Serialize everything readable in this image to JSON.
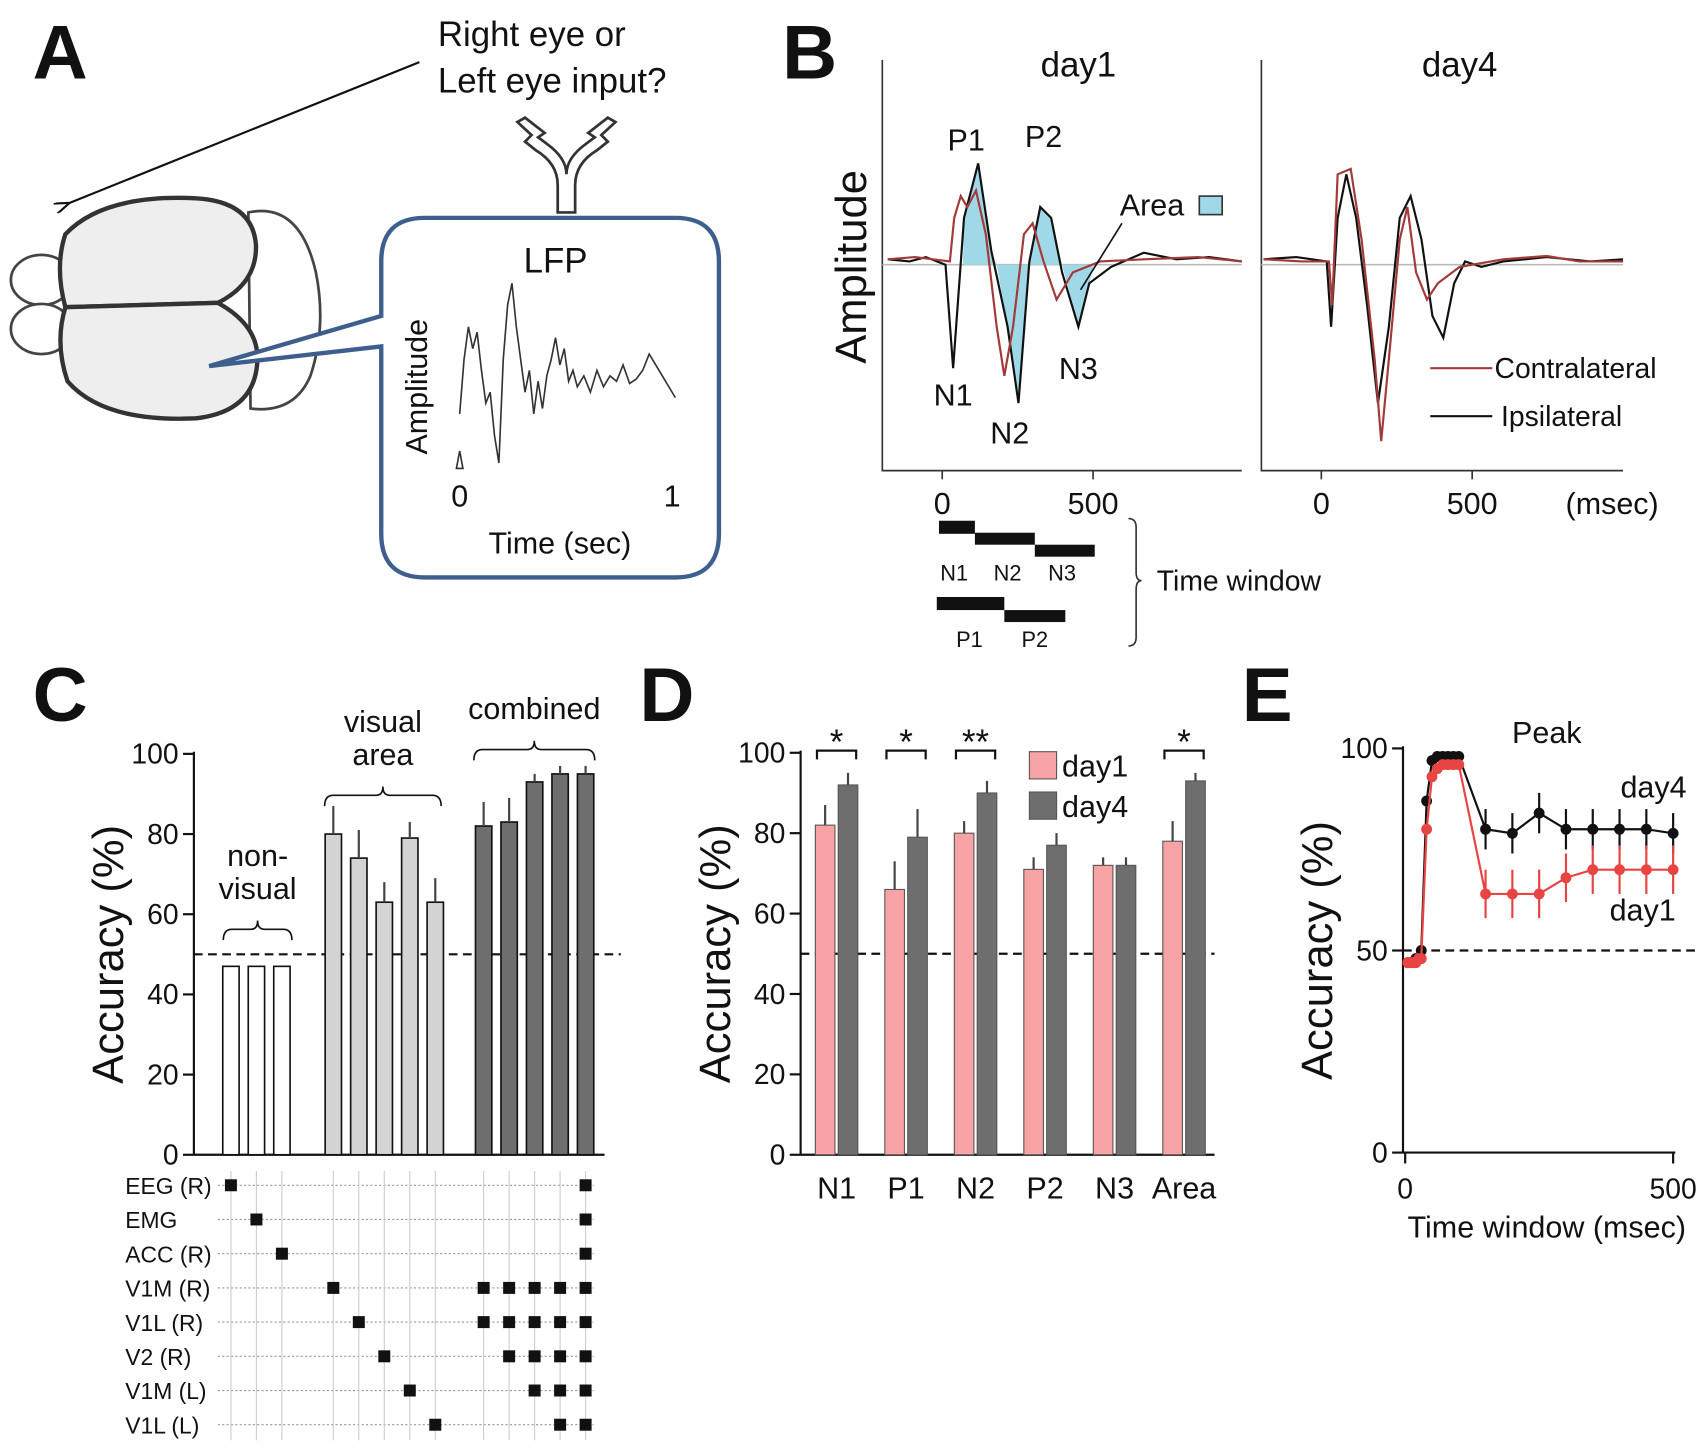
{
  "panel_a": {
    "label": "A",
    "question": [
      "Right eye or",
      "Left eye input?"
    ],
    "lfp_title": "LFP",
    "y_label": "Amplitude",
    "x_label": "Time (sec)",
    "xticks": [
      0,
      1
    ]
  },
  "panel_b": {
    "label": "B",
    "titles": [
      "day1",
      "day4"
    ],
    "y_label": "Amplitude",
    "peaks": {
      "P1": "P1",
      "P2": "P2",
      "N1": "N1",
      "N2": "N2",
      "N3": "N3"
    },
    "area": "Area",
    "legend": [
      {
        "name": "Contralateral",
        "color": "#a33a3a"
      },
      {
        "name": "Ipsilateral",
        "color": "#111111"
      }
    ],
    "xticks": [
      0,
      500
    ],
    "x_unit": "(msec)",
    "windows": [
      "N1",
      "N2",
      "N3",
      "P1",
      "P2"
    ],
    "window_label": "Time window"
  },
  "chart_data": [
    {
      "type": "bar",
      "label": "C",
      "y_label": "Accuracy (%)",
      "ylim": [
        0,
        100
      ],
      "yticks": [
        0,
        20,
        40,
        60,
        80,
        100
      ],
      "chance": 50,
      "groups": [
        {
          "label": [
            "non-",
            "visual"
          ],
          "color": "#ffffff",
          "values": [
            47,
            47,
            47
          ],
          "errors": [
            0,
            0,
            0
          ],
          "inputs": [
            [
              0
            ],
            [
              1
            ],
            [
              2
            ]
          ]
        },
        {
          "label": [
            "visual",
            "area"
          ],
          "color": "#d3d3d3",
          "values": [
            80,
            74,
            63,
            79,
            63
          ],
          "errors": [
            7,
            7,
            5,
            4,
            6
          ],
          "inputs": [
            [
              3
            ],
            [
              4
            ],
            [
              5
            ],
            [
              6
            ],
            [
              7
            ]
          ]
        },
        {
          "label": [
            "combined"
          ],
          "color": "#6e6e6e",
          "values": [
            82,
            83,
            93,
            95,
            95
          ],
          "errors": [
            6,
            6,
            2,
            2,
            2
          ],
          "inputs": [
            [
              3,
              4
            ],
            [
              3,
              4,
              5
            ],
            [
              3,
              4,
              5,
              6
            ],
            [
              3,
              4,
              5,
              6,
              7
            ],
            [
              0,
              1,
              2,
              3,
              4,
              5,
              6,
              7
            ]
          ]
        }
      ],
      "rows": [
        "EEG (R)",
        "EMG",
        "ACC (R)",
        "V1M (R)",
        "V1L (R)",
        "V2 (R)",
        "V1M (L)",
        "V1L (L)"
      ]
    },
    {
      "type": "grouped_bar",
      "label": "D",
      "y_label": "Accuracy (%)",
      "ylim": [
        0,
        100
      ],
      "yticks": [
        0,
        20,
        40,
        60,
        80,
        100
      ],
      "chance": 50,
      "categories": [
        "N1",
        "P1",
        "N2",
        "P2",
        "N3",
        "Area"
      ],
      "series": [
        {
          "name": "day1",
          "color": "#f7a3a3",
          "values": [
            82,
            66,
            80,
            71,
            72,
            78
          ],
          "errors": [
            5,
            7,
            3,
            3,
            2,
            5
          ]
        },
        {
          "name": "day4",
          "color": "#6e6e6e",
          "values": [
            92,
            79,
            90,
            77,
            72,
            93
          ],
          "errors": [
            3,
            7,
            3,
            3,
            2,
            2
          ]
        }
      ],
      "significance": [
        "*",
        "*",
        "**",
        null,
        null,
        "*"
      ],
      "legend": "top-right"
    },
    {
      "type": "line",
      "label": "E",
      "title": "Peak",
      "x_label": "Time window (msec)",
      "y_label": "Accuracy (%)",
      "xlim": [
        0,
        500
      ],
      "xticks": [
        0,
        500
      ],
      "ylim": [
        0,
        100
      ],
      "yticks": [
        0,
        50,
        100
      ],
      "chance": 50,
      "x": [
        5,
        10,
        15,
        20,
        25,
        30,
        40,
        50,
        60,
        70,
        80,
        90,
        100,
        150,
        200,
        250,
        300,
        350,
        400,
        450,
        500
      ],
      "series": [
        {
          "name": "day4",
          "color": "#111111",
          "values": [
            47,
            47,
            47,
            48,
            48,
            50,
            87,
            97,
            98,
            98,
            98,
            98,
            98,
            80,
            79,
            84,
            80,
            80,
            80,
            80,
            79
          ],
          "errors": [
            0,
            0,
            0,
            0,
            0,
            0,
            0,
            0,
            0,
            0,
            0,
            0,
            0,
            5,
            5,
            5,
            5,
            5,
            5,
            5,
            5
          ]
        },
        {
          "name": "day1",
          "color": "#e84444",
          "values": [
            47,
            47,
            47,
            47,
            48,
            48,
            80,
            93,
            95,
            96,
            96,
            96,
            96,
            64,
            64,
            64,
            68,
            70,
            70,
            70,
            70
          ],
          "errors": [
            0,
            0,
            0,
            0,
            0,
            0,
            0,
            0,
            0,
            0,
            0,
            0,
            0,
            6,
            6,
            6,
            6,
            6,
            6,
            6,
            6
          ]
        }
      ]
    }
  ]
}
